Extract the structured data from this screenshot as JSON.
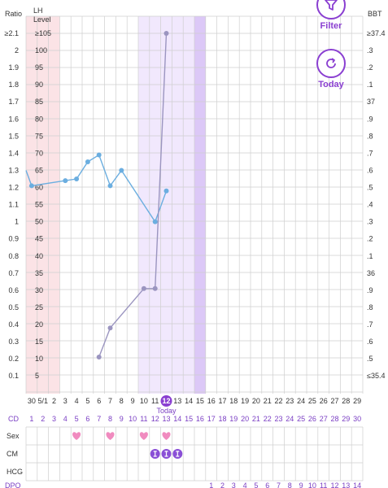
{
  "chart_data": {
    "type": "line",
    "left_axis_title": "Ratio",
    "lh_axis_title": [
      "LH",
      "Level"
    ],
    "right_axis_title": "BBT",
    "ratio_ticks": [
      "≥2.1",
      "2",
      "1.9",
      "1.8",
      "1.7",
      "1.6",
      "1.5",
      "1.4",
      "1.3",
      "1.2",
      "1.1",
      "1",
      "0.9",
      "0.8",
      "0.7",
      "0.6",
      "0.5",
      "0.4",
      "0.3",
      "0.2",
      "0.1"
    ],
    "lh_ticks": [
      "≥105",
      "100",
      "95",
      "90",
      "85",
      "80",
      "75",
      "70",
      "65",
      "60",
      "55",
      "50",
      "45",
      "40",
      "35",
      "30",
      "25",
      "20",
      "15",
      "10",
      "5"
    ],
    "bbt_ticks": [
      "≥37.4",
      ".3",
      ".2",
      ".1",
      "37",
      ".9",
      ".8",
      ".7",
      ".6",
      ".5",
      ".4",
      ".3",
      ".2",
      ".1",
      "36",
      ".9",
      ".8",
      ".7",
      ".6",
      ".5",
      "≤35.4"
    ],
    "x_labels": [
      "30",
      "5/1",
      "2",
      "3",
      "4",
      "5",
      "6",
      "7",
      "8",
      "9",
      "10",
      "11",
      "12",
      "13",
      "14",
      "15",
      "16",
      "17",
      "18",
      "19",
      "20",
      "21",
      "22",
      "23",
      "24",
      "25",
      "26",
      "27",
      "28",
      "29"
    ],
    "today_index": 12,
    "today_label": "Today",
    "cd_label": "CD",
    "cd_values": [
      "1",
      "2",
      "3",
      "4",
      "5",
      "6",
      "7",
      "8",
      "9",
      "10",
      "11",
      "12",
      "13",
      "14",
      "15",
      "16",
      "17",
      "18",
      "19",
      "20",
      "21",
      "22",
      "23",
      "24",
      "25",
      "26",
      "27",
      "28",
      "29",
      "30"
    ],
    "series": [
      {
        "color": "#6baee0",
        "points": [
          {
            "x": -0.5,
            "lh": 65
          },
          {
            "x": 0,
            "lh": 60.5
          },
          {
            "x": 3,
            "lh": 62
          },
          {
            "x": 4,
            "lh": 62.5
          },
          {
            "x": 5,
            "lh": 67.5
          },
          {
            "x": 6,
            "lh": 69.5
          },
          {
            "x": 7,
            "lh": 60.5
          },
          {
            "x": 8,
            "lh": 65
          },
          {
            "x": 11,
            "lh": 50
          },
          {
            "x": 12,
            "lh": 59
          }
        ]
      },
      {
        "color": "#9b95c0",
        "points": [
          {
            "x": 6,
            "lh": 10.5
          },
          {
            "x": 7,
            "lh": 19
          },
          {
            "x": 10,
            "lh": 30.5
          },
          {
            "x": 11,
            "lh": 30.5
          },
          {
            "x": 12,
            "lh": 105
          }
        ]
      }
    ],
    "bands": [
      {
        "from": 0,
        "to": 3,
        "color": "#fbe3e6"
      },
      {
        "from": 10,
        "to": 15,
        "color": "#f1e8fd"
      },
      {
        "from": 15,
        "to": 16,
        "color": "#dcc8f7"
      }
    ],
    "rows": [
      {
        "label": "Sex",
        "marks": [
          4,
          7,
          10,
          12
        ],
        "color": "#f08bbf",
        "icon": "heart-icon"
      },
      {
        "label": "CM",
        "marks": [
          11,
          12,
          13
        ],
        "color": "#8a4fd6",
        "icon": "egg-white-icon"
      },
      {
        "label": "HCG",
        "marks": [],
        "color": "#8a4fd6",
        "icon": ""
      }
    ],
    "dpo_label": "DPO",
    "dpo_values": [
      "1",
      "2",
      "3",
      "4",
      "5",
      "6",
      "7",
      "8",
      "9",
      "10",
      "11",
      "12",
      "13",
      "14"
    ],
    "dpo_start_index": 16
  },
  "buttons": {
    "filter": {
      "label": "Filter",
      "icon": "filter-icon"
    },
    "today": {
      "label": "Today",
      "icon": "refresh-icon"
    }
  },
  "colors": {
    "accent": "#8a3fd1",
    "grid": "#cfcfcf"
  }
}
